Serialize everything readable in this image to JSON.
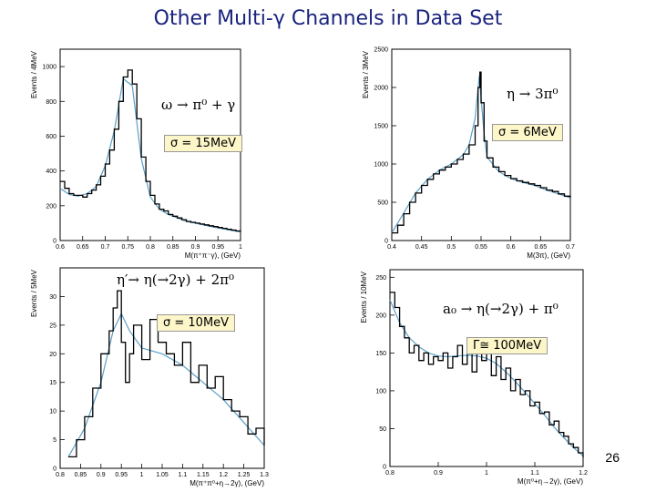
{
  "title": "Other Multi-γ Channels in Data Set",
  "page_number": "26",
  "colors": {
    "hist": "#000000",
    "fit": "#5aa0c8",
    "box_bg": "#fdf6c9",
    "title": "#1a237e"
  },
  "chart_data": [
    {
      "type": "line",
      "ylabel": "Events / 4MeV",
      "xlabel": "M(π⁺π⁻γ),  (GeV)",
      "xlim": [
        0.6,
        1.0
      ],
      "ylim": [
        0,
        1100
      ],
      "xticks": [
        0.6,
        0.65,
        0.7,
        0.75,
        0.8,
        0.85,
        0.9,
        0.95,
        1.0
      ],
      "xtick_labels": [
        "0.6",
        "0.65",
        "0.7",
        "0.75",
        "0.8",
        "0.85",
        "0.9",
        "0.95",
        "1"
      ],
      "yticks": [
        0,
        200,
        400,
        600,
        800,
        1000
      ],
      "ytick_labels": [
        "0",
        "200",
        "400",
        "600",
        "800",
        "1000"
      ],
      "reaction": "ω  → π⁰ + γ",
      "resolution": "σ = 15MeV",
      "hist": {
        "x": [
          0.6,
          0.61,
          0.62,
          0.63,
          0.64,
          0.65,
          0.66,
          0.67,
          0.68,
          0.69,
          0.7,
          0.71,
          0.72,
          0.73,
          0.74,
          0.75,
          0.76,
          0.77,
          0.78,
          0.79,
          0.8,
          0.81,
          0.82,
          0.83,
          0.84,
          0.85,
          0.86,
          0.87,
          0.88,
          0.89,
          0.9,
          0.91,
          0.92,
          0.93,
          0.94,
          0.95,
          0.96,
          0.97,
          0.98,
          0.99,
          1.0
        ],
        "y": [
          340,
          300,
          270,
          260,
          260,
          250,
          270,
          290,
          320,
          370,
          440,
          520,
          640,
          800,
          940,
          980,
          900,
          700,
          480,
          340,
          260,
          210,
          180,
          170,
          150,
          140,
          130,
          120,
          110,
          105,
          100,
          95,
          90,
          85,
          80,
          75,
          70,
          65,
          60,
          55,
          50
        ]
      },
      "fit": {
        "x": [
          0.6,
          0.62,
          0.64,
          0.66,
          0.68,
          0.7,
          0.72,
          0.74,
          0.76,
          0.78,
          0.8,
          0.82,
          0.84,
          0.86,
          0.88,
          0.9,
          0.92,
          0.94,
          0.96,
          0.98,
          1.0
        ],
        "y": [
          300,
          265,
          255,
          270,
          310,
          430,
          630,
          930,
          890,
          470,
          250,
          180,
          150,
          130,
          110,
          100,
          88,
          78,
          68,
          58,
          50
        ]
      }
    },
    {
      "type": "line",
      "ylabel": "Events / 3MeV",
      "xlabel": "M(3π),  (GeV)",
      "xlim": [
        0.4,
        0.7
      ],
      "ylim": [
        0,
        2500
      ],
      "xticks": [
        0.4,
        0.45,
        0.5,
        0.55,
        0.6,
        0.65,
        0.7
      ],
      "xtick_labels": [
        "0.4",
        "0.45",
        "0.5",
        "0.55",
        "0.6",
        "0.65",
        "0.7"
      ],
      "yticks": [
        0,
        500,
        1000,
        1500,
        2000,
        2500
      ],
      "ytick_labels": [
        "0",
        "500",
        "1000",
        "1500",
        "2000",
        "2500"
      ],
      "reaction": "η  → 3π⁰",
      "resolution": "σ = 6MeV",
      "hist": {
        "x": [
          0.4,
          0.41,
          0.42,
          0.43,
          0.44,
          0.45,
          0.46,
          0.47,
          0.48,
          0.49,
          0.5,
          0.51,
          0.52,
          0.53,
          0.54,
          0.545,
          0.548,
          0.55,
          0.555,
          0.56,
          0.57,
          0.58,
          0.59,
          0.6,
          0.61,
          0.62,
          0.63,
          0.64,
          0.65,
          0.66,
          0.67,
          0.68,
          0.69,
          0.7
        ],
        "y": [
          100,
          200,
          350,
          500,
          620,
          720,
          800,
          870,
          920,
          960,
          1000,
          1060,
          1130,
          1250,
          1500,
          2000,
          2200,
          1800,
          1300,
          1080,
          960,
          900,
          850,
          810,
          780,
          760,
          740,
          720,
          690,
          660,
          640,
          610,
          580,
          560
        ]
      },
      "fit": {
        "x": [
          0.4,
          0.42,
          0.44,
          0.46,
          0.48,
          0.5,
          0.52,
          0.53,
          0.54,
          0.547,
          0.555,
          0.56,
          0.58,
          0.6,
          0.62,
          0.64,
          0.66,
          0.68,
          0.7
        ],
        "y": [
          100,
          360,
          620,
          800,
          920,
          1000,
          1120,
          1250,
          1600,
          2150,
          1400,
          1090,
          900,
          810,
          760,
          720,
          660,
          610,
          560
        ]
      }
    },
    {
      "type": "line",
      "ylabel": "Events / 5MeV",
      "xlabel": "M(π⁺π⁰+η→2γ),  (GeV)",
      "xlim": [
        0.8,
        1.3
      ],
      "ylim": [
        0,
        35
      ],
      "xticks": [
        0.8,
        0.85,
        0.9,
        0.95,
        1.0,
        1.05,
        1.1,
        1.15,
        1.2,
        1.25,
        1.3
      ],
      "xtick_labels": [
        "0.8",
        "0.85",
        "0.9",
        "0.95",
        "1",
        "1.05",
        "1.1",
        "1.15",
        "1.2",
        "1.25",
        "1.3"
      ],
      "yticks": [
        0,
        5,
        10,
        15,
        20,
        25,
        30
      ],
      "ytick_labels": [
        "0",
        "5",
        "10",
        "15",
        "20",
        "25",
        "30"
      ],
      "reaction": "η′→ η(→2γ) + 2π⁰",
      "resolution": "σ = 10MeV",
      "hist": {
        "x": [
          0.82,
          0.84,
          0.86,
          0.88,
          0.9,
          0.92,
          0.93,
          0.94,
          0.95,
          0.96,
          0.97,
          0.98,
          1.0,
          1.02,
          1.04,
          1.06,
          1.08,
          1.1,
          1.12,
          1.14,
          1.16,
          1.18,
          1.2,
          1.22,
          1.24,
          1.26,
          1.28,
          1.3
        ],
        "y": [
          2,
          5,
          9,
          14,
          20,
          24,
          28,
          31,
          22,
          15,
          20,
          25,
          19,
          26,
          22,
          20,
          18,
          22,
          15,
          18,
          14,
          16,
          12,
          10,
          9,
          6,
          7,
          4
        ]
      },
      "fit": {
        "x": [
          0.82,
          0.86,
          0.9,
          0.93,
          0.95,
          0.97,
          1.0,
          1.05,
          1.1,
          1.15,
          1.2,
          1.25,
          1.3
        ],
        "y": [
          2,
          7,
          15,
          24,
          27,
          24,
          21,
          20,
          18,
          15,
          12,
          8,
          4
        ]
      }
    },
    {
      "type": "line",
      "ylabel": "Events / 10MeV",
      "xlabel": "M(π⁰+η→2γ),  (GeV)",
      "xlim": [
        0.8,
        1.2
      ],
      "ylim": [
        0,
        260
      ],
      "xticks": [
        0.8,
        0.9,
        1.0,
        1.1,
        1.2
      ],
      "xtick_labels": [
        "0.8",
        "0.9",
        "1",
        "1.1",
        "1.2"
      ],
      "yticks": [
        0,
        50,
        100,
        150,
        200,
        250
      ],
      "ytick_labels": [
        "0",
        "50",
        "100",
        "150",
        "200",
        "250"
      ],
      "reaction": "a₀ → η(→2γ) + π⁰",
      "resolution": "Γ≅ 100MeV",
      "hist": {
        "x": [
          0.8,
          0.81,
          0.82,
          0.83,
          0.84,
          0.85,
          0.86,
          0.87,
          0.88,
          0.89,
          0.9,
          0.91,
          0.92,
          0.93,
          0.94,
          0.95,
          0.96,
          0.97,
          0.98,
          0.99,
          1.0,
          1.01,
          1.02,
          1.03,
          1.04,
          1.05,
          1.06,
          1.07,
          1.08,
          1.09,
          1.1,
          1.11,
          1.12,
          1.13,
          1.14,
          1.15,
          1.16,
          1.17,
          1.18,
          1.19,
          1.2
        ],
        "y": [
          230,
          210,
          185,
          170,
          150,
          160,
          140,
          150,
          135,
          145,
          140,
          150,
          130,
          145,
          160,
          135,
          150,
          125,
          160,
          140,
          170,
          120,
          145,
          115,
          130,
          100,
          115,
          95,
          100,
          80,
          85,
          70,
          72,
          55,
          60,
          45,
          40,
          30,
          25,
          18,
          12
        ]
      },
      "fit": {
        "x": [
          0.8,
          0.82,
          0.84,
          0.86,
          0.88,
          0.9,
          0.92,
          0.94,
          0.96,
          0.98,
          1.0,
          1.02,
          1.04,
          1.06,
          1.08,
          1.1,
          1.12,
          1.14,
          1.16,
          1.18,
          1.2
        ],
        "y": [
          220,
          190,
          170,
          158,
          150,
          146,
          145,
          146,
          147,
          146,
          143,
          136,
          125,
          112,
          98,
          83,
          68,
          52,
          38,
          25,
          14
        ]
      }
    }
  ]
}
